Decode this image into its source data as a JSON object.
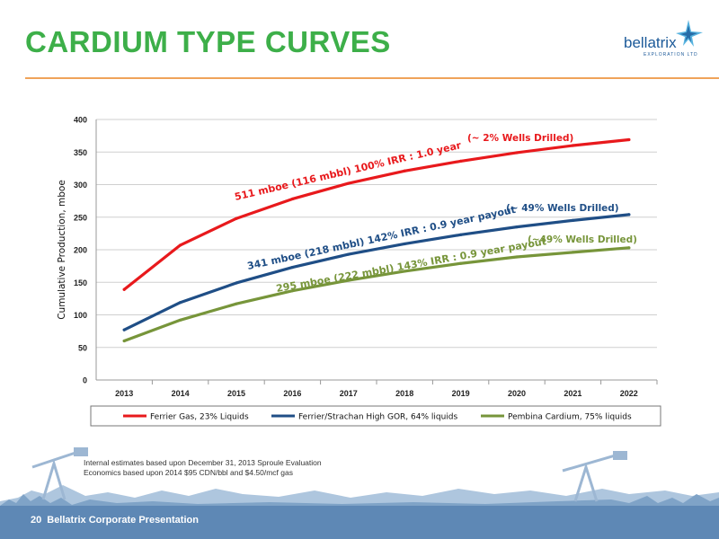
{
  "slide": {
    "title": "CARDIUM TYPE CURVES",
    "page_number": "20",
    "footer_label": "Bellatrix Corporate Presentation",
    "note_lines": [
      "Internal estimates based upon December 31, 2013 Sproule Evaluation",
      "Economics based upon 2014 $95 CDN/bbl and $4.50/mcf gas"
    ]
  },
  "logo": {
    "name": "bellatrix",
    "tagline": "EXPLORATION LTD",
    "icon": "star-burst-icon"
  },
  "colors": {
    "title": "#3daf49",
    "rule": "#f0a35a",
    "footer": "#5e88b5",
    "red": "#e8191c",
    "blue": "#1f4e86",
    "green": "#77953a"
  },
  "chart_data": {
    "type": "line",
    "x": [
      2013,
      2014,
      2015,
      2016,
      2017,
      2018,
      2019,
      2020,
      2021,
      2022
    ],
    "ylabel": "Cumulative Production, mboe",
    "ylim": [
      0,
      400
    ],
    "yticks": [
      0,
      50,
      100,
      150,
      200,
      250,
      300,
      350,
      400
    ],
    "grid": "horizontal",
    "legend": "bottom",
    "series": [
      {
        "name": "Ferrier Gas, 23% Liquids",
        "color": "#e8191c",
        "values": [
          139,
          207,
          248,
          278,
          302,
          321,
          336,
          349,
          360,
          369
        ]
      },
      {
        "name": "Ferrier/Strachan High GOR, 64% liquids",
        "color": "#1f4e86",
        "values": [
          77,
          119,
          149,
          173,
          193,
          209,
          223,
          235,
          245,
          254
        ]
      },
      {
        "name": "Pembina Cardium, 75% liquids",
        "color": "#77953a",
        "values": [
          60,
          92,
          117,
          137,
          153,
          167,
          179,
          189,
          196,
          203
        ]
      }
    ],
    "annotations": [
      {
        "text": "511 mboe (116 mbbl) 100% IRR : 1.0 year",
        "series": 0
      },
      {
        "text": "(~ 2% Wells Drilled)",
        "series": 0
      },
      {
        "text": "341 mboe (218 mbbl) 142% IRR : 0.9 year payout",
        "series": 1
      },
      {
        "text": "(~ 49% Wells Drilled)",
        "series": 1
      },
      {
        "text": "295 mboe (222 mbbl) 143% IRR : 0.9 year payout",
        "series": 2
      },
      {
        "text": "(~49% Wells Drilled)",
        "series": 2
      }
    ]
  }
}
